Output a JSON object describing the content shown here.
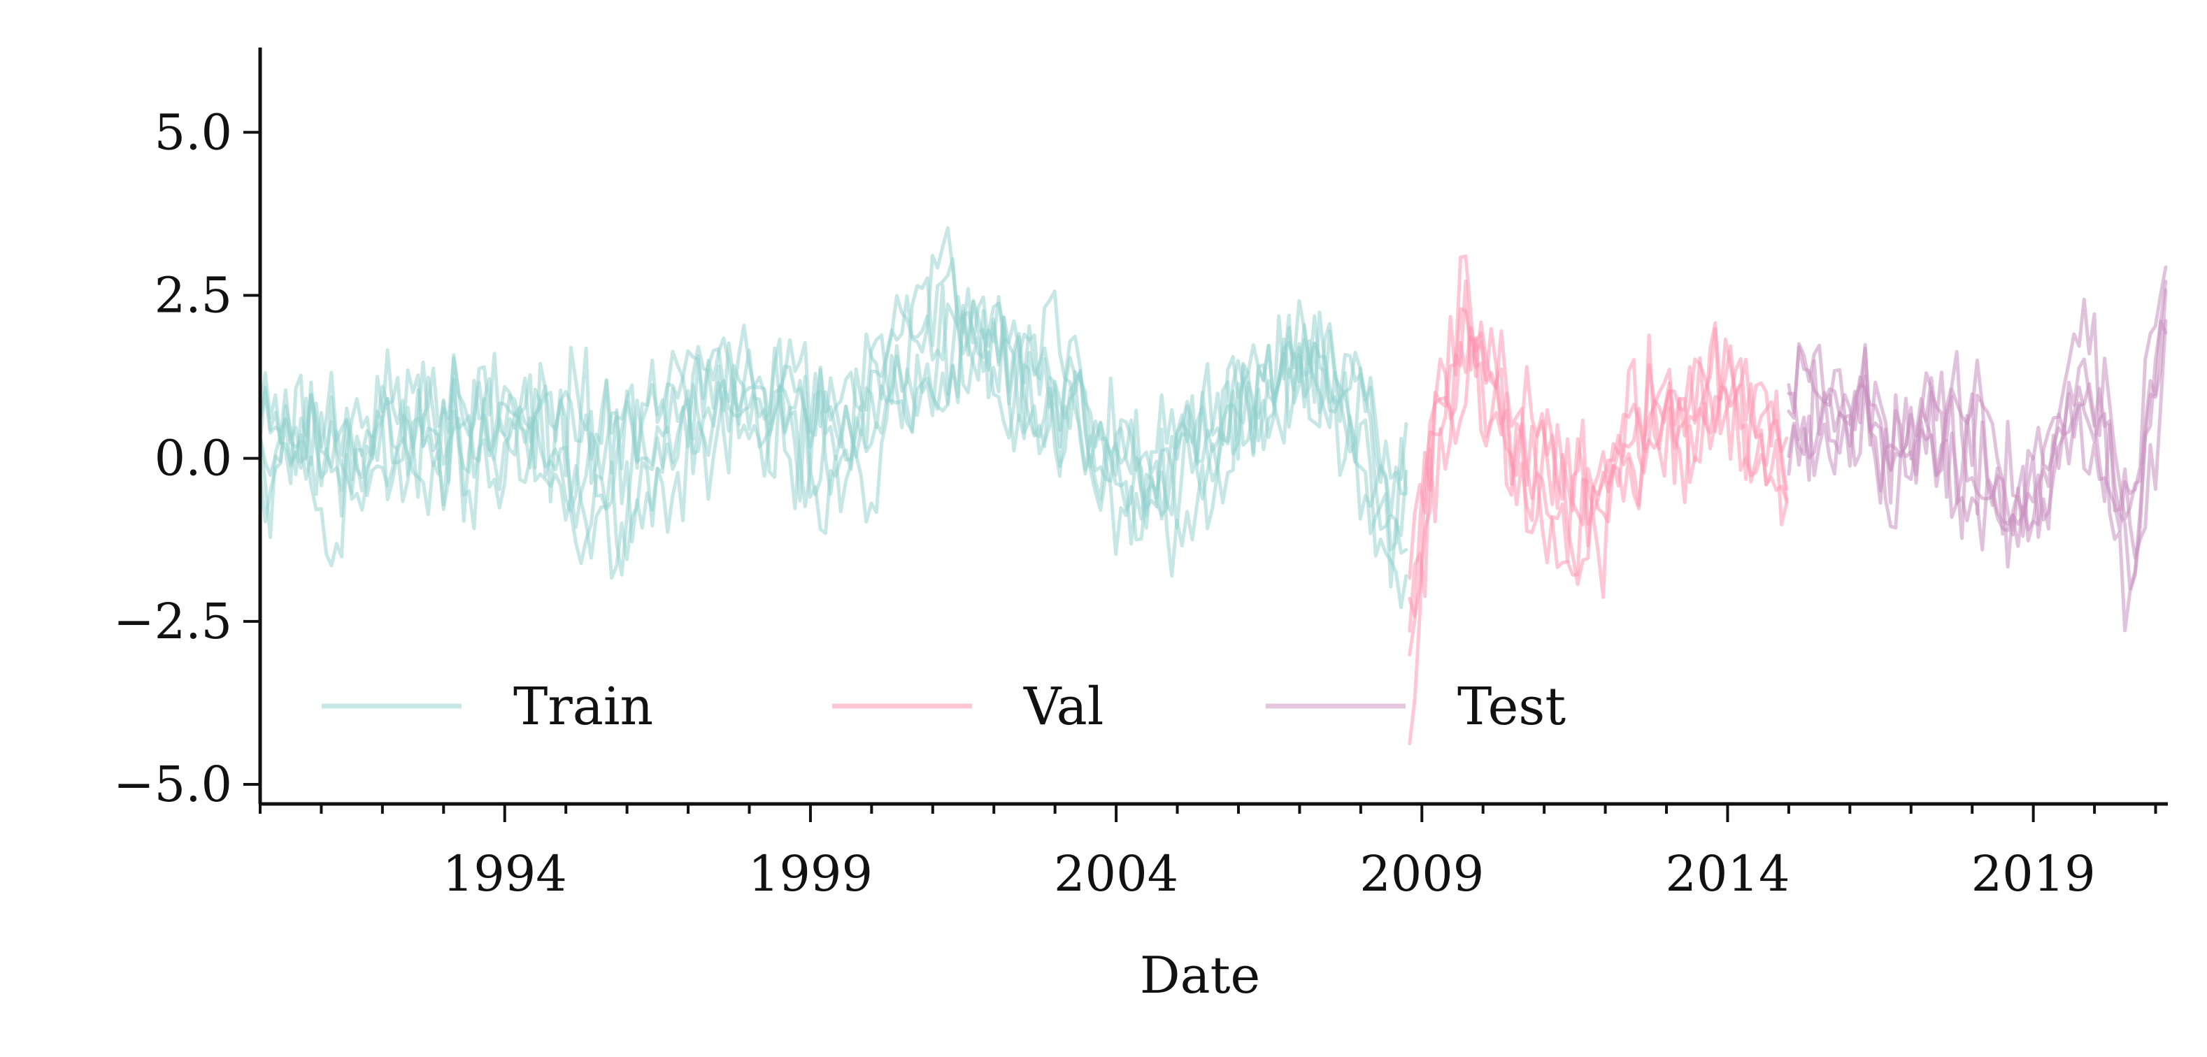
{
  "chart_data": {
    "type": "line",
    "title": "",
    "xlabel": "Date",
    "ylabel": "",
    "xlim": [
      1990.0,
      2021.2
    ],
    "ylim": [
      -5.3,
      6.3
    ],
    "x_ticks": [
      1994,
      1999,
      2004,
      2009,
      2014,
      2019
    ],
    "x_tick_labels": [
      "1994",
      "1999",
      "2004",
      "2009",
      "2014",
      "2019"
    ],
    "x_minor_tick_step": 1,
    "y_ticks": [
      5.0,
      2.5,
      0.0,
      -2.5,
      -5.0
    ],
    "y_tick_labels": [
      "5.0",
      "2.5",
      "0.0",
      "−2.5",
      "−5.0"
    ],
    "grid": false,
    "legend": {
      "placement": "lower-left",
      "columns": 3
    },
    "series": [
      {
        "name": "Train",
        "color": "#8ecfcc",
        "opacity": 0.5,
        "x_range": [
          1990.0,
          2008.8
        ],
        "step": 0.0833,
        "traces": [
          {
            "seed": 11,
            "anchors": [
              [
                1990.0,
                1.2
              ],
              [
                1991.0,
                0.1
              ],
              [
                1992.5,
                0.4
              ],
              [
                1994.0,
                0.6
              ],
              [
                1995.5,
                -0.6
              ],
              [
                1997.0,
                1.3
              ],
              [
                1998.5,
                0.2
              ],
              [
                2000.0,
                0.5
              ],
              [
                2001.0,
                2.6
              ],
              [
                2002.5,
                1.3
              ],
              [
                2004.0,
                -0.2
              ],
              [
                2005.5,
                0.1
              ],
              [
                2007.0,
                1.8
              ],
              [
                2008.0,
                -0.5
              ],
              [
                2008.8,
                -1.3
              ]
            ],
            "noise": 1.1,
            "min": -4.2,
            "max": 5.3
          },
          {
            "seed": 23,
            "anchors": [
              [
                1990.0,
                0.6
              ],
              [
                1991.5,
                0.8
              ],
              [
                1993.0,
                0.0
              ],
              [
                1994.5,
                1.0
              ],
              [
                1996.0,
                -0.4
              ],
              [
                1997.5,
                1.6
              ],
              [
                1999.0,
                -0.2
              ],
              [
                2000.5,
                1.0
              ],
              [
                2001.5,
                2.2
              ],
              [
                2003.0,
                0.9
              ],
              [
                2004.5,
                -0.6
              ],
              [
                2006.0,
                0.6
              ],
              [
                2007.5,
                1.5
              ],
              [
                2008.8,
                -1.1
              ]
            ],
            "noise": 1.2,
            "min": -4.2,
            "max": 5.3
          },
          {
            "seed": 37,
            "anchors": [
              [
                1990.0,
                0.2
              ],
              [
                1991.5,
                0.3
              ],
              [
                1993.5,
                0.5
              ],
              [
                1995.0,
                -0.2
              ],
              [
                1996.5,
                0.3
              ],
              [
                1998.0,
                1.0
              ],
              [
                1999.5,
                0.8
              ],
              [
                2001.0,
                1.9
              ],
              [
                2002.0,
                1.5
              ],
              [
                2003.5,
                0.6
              ],
              [
                2005.0,
                -0.3
              ],
              [
                2006.5,
                0.9
              ],
              [
                2007.8,
                0.8
              ],
              [
                2008.8,
                -1.6
              ]
            ],
            "noise": 1.0,
            "min": -4.2,
            "max": 5.3
          },
          {
            "seed": 41,
            "anchors": [
              [
                1990.0,
                -0.3
              ],
              [
                1992.0,
                0.2
              ],
              [
                1994.0,
                0.9
              ],
              [
                1995.5,
                -1.0
              ],
              [
                1997.0,
                0.9
              ],
              [
                1998.5,
                0.6
              ],
              [
                2000.0,
                0.2
              ],
              [
                2001.5,
                1.7
              ],
              [
                2003.0,
                1.6
              ],
              [
                2004.0,
                -1.0
              ],
              [
                2005.5,
                0.4
              ],
              [
                2007.0,
                1.2
              ],
              [
                2008.8,
                -0.8
              ]
            ],
            "noise": 1.1,
            "min": -4.2,
            "max": 5.3
          },
          {
            "seed": 53,
            "anchors": [
              [
                1990.0,
                1.8
              ],
              [
                1991.0,
                -0.4
              ],
              [
                1993.0,
                0.3
              ],
              [
                1995.0,
                0.4
              ],
              [
                1996.5,
                -0.8
              ],
              [
                1998.0,
                1.4
              ],
              [
                1999.5,
                0.0
              ],
              [
                2001.0,
                2.4
              ],
              [
                2002.5,
                1.0
              ],
              [
                2004.0,
                0.2
              ],
              [
                2005.5,
                -0.4
              ],
              [
                2007.0,
                2.1
              ],
              [
                2008.8,
                -1.9
              ]
            ],
            "noise": 1.2,
            "min": -4.2,
            "max": 5.3
          },
          {
            "seed": 67,
            "anchors": [
              [
                1990.0,
                0.5
              ],
              [
                1992.0,
                0.7
              ],
              [
                1993.5,
                -0.3
              ],
              [
                1995.0,
                0.8
              ],
              [
                1997.0,
                0.4
              ],
              [
                1998.5,
                1.1
              ],
              [
                2000.0,
                0.7
              ],
              [
                2001.5,
                2.0
              ],
              [
                2003.0,
                1.1
              ],
              [
                2004.5,
                -0.1
              ],
              [
                2006.0,
                0.3
              ],
              [
                2007.5,
                2.0
              ],
              [
                2008.8,
                -0.9
              ]
            ],
            "noise": 0.95,
            "min": -4.2,
            "max": 5.3
          }
        ]
      },
      {
        "name": "Val",
        "color": "#ff8fab",
        "opacity": 0.5,
        "x_range": [
          2008.8,
          2015.0
        ],
        "step": 0.0833,
        "traces": [
          {
            "seed": 101,
            "anchors": [
              [
                2008.8,
                -3.2
              ],
              [
                2009.2,
                1.2
              ],
              [
                2009.8,
                2.2
              ],
              [
                2010.5,
                0.3
              ],
              [
                2011.5,
                -0.7
              ],
              [
                2012.5,
                0.6
              ],
              [
                2013.5,
                0.9
              ],
              [
                2014.3,
                0.6
              ],
              [
                2015.0,
                -0.4
              ]
            ],
            "noise": 1.1,
            "min": -4.8,
            "max": 5.8
          },
          {
            "seed": 113,
            "anchors": [
              [
                2008.8,
                -2.1
              ],
              [
                2009.3,
                0.8
              ],
              [
                2009.9,
                1.6
              ],
              [
                2010.7,
                -0.2
              ],
              [
                2011.7,
                -0.9
              ],
              [
                2012.7,
                0.2
              ],
              [
                2013.6,
                1.1
              ],
              [
                2014.5,
                0.4
              ],
              [
                2015.0,
                0.2
              ]
            ],
            "noise": 1.2,
            "min": -4.8,
            "max": 5.8
          },
          {
            "seed": 127,
            "anchors": [
              [
                2008.8,
                -4.7
              ],
              [
                2009.1,
                0.2
              ],
              [
                2009.7,
                2.8
              ],
              [
                2010.4,
                0.8
              ],
              [
                2011.3,
                -1.2
              ],
              [
                2012.3,
                0.0
              ],
              [
                2013.3,
                0.6
              ],
              [
                2014.2,
                1.0
              ],
              [
                2015.0,
                -0.8
              ]
            ],
            "noise": 1.0,
            "min": -4.8,
            "max": 5.8
          },
          {
            "seed": 131,
            "anchors": [
              [
                2008.8,
                -1.3
              ],
              [
                2009.4,
                1.4
              ],
              [
                2010.0,
                1.0
              ],
              [
                2010.8,
                -0.5
              ],
              [
                2011.8,
                -0.3
              ],
              [
                2012.8,
                0.8
              ],
              [
                2013.8,
                0.4
              ],
              [
                2014.6,
                0.9
              ],
              [
                2015.0,
                0.0
              ]
            ],
            "noise": 1.1,
            "min": -4.8,
            "max": 5.8
          },
          {
            "seed": 149,
            "anchors": [
              [
                2008.8,
                -2.6
              ],
              [
                2009.2,
                0.5
              ],
              [
                2009.8,
                1.9
              ],
              [
                2010.6,
                0.0
              ],
              [
                2011.6,
                -0.8
              ],
              [
                2012.6,
                0.3
              ],
              [
                2013.4,
                1.3
              ],
              [
                2014.4,
                0.2
              ],
              [
                2015.0,
                -0.3
              ]
            ],
            "noise": 1.15,
            "min": -4.8,
            "max": 5.8
          }
        ]
      },
      {
        "name": "Test",
        "color": "#c98fbf",
        "opacity": 0.55,
        "x_range": [
          2015.0,
          2021.2
        ],
        "step": 0.0833,
        "traces": [
          {
            "seed": 211,
            "anchors": [
              [
                2015.0,
                1.6
              ],
              [
                2015.8,
                0.6
              ],
              [
                2016.6,
                0.2
              ],
              [
                2017.4,
                0.8
              ],
              [
                2018.2,
                -0.5
              ],
              [
                2019.0,
                -1.1
              ],
              [
                2019.8,
                0.9
              ],
              [
                2020.6,
                -1.6
              ],
              [
                2021.2,
                2.4
              ]
            ],
            "noise": 1.1,
            "min": -3.6,
            "max": 5.4
          },
          {
            "seed": 223,
            "anchors": [
              [
                2015.0,
                0.9
              ],
              [
                2015.9,
                1.0
              ],
              [
                2016.7,
                -0.3
              ],
              [
                2017.5,
                0.4
              ],
              [
                2018.3,
                -0.2
              ],
              [
                2019.1,
                -0.6
              ],
              [
                2019.9,
                1.4
              ],
              [
                2020.7,
                -1.0
              ],
              [
                2021.2,
                1.8
              ]
            ],
            "noise": 1.2,
            "min": -3.6,
            "max": 5.4
          },
          {
            "seed": 233,
            "anchors": [
              [
                2015.0,
                0.4
              ],
              [
                2015.7,
                0.3
              ],
              [
                2016.5,
                0.5
              ],
              [
                2017.3,
                0.1
              ],
              [
                2018.1,
                -0.8
              ],
              [
                2018.9,
                -0.9
              ],
              [
                2019.7,
                0.5
              ],
              [
                2020.5,
                -1.3
              ],
              [
                2021.2,
                3.0
              ]
            ],
            "noise": 1.0,
            "min": -3.6,
            "max": 5.4
          },
          {
            "seed": 241,
            "anchors": [
              [
                2015.0,
                1.2
              ],
              [
                2015.8,
                0.8
              ],
              [
                2016.6,
                0.0
              ],
              [
                2017.4,
                1.0
              ],
              [
                2018.2,
                0.0
              ],
              [
                2019.0,
                -1.4
              ],
              [
                2019.8,
                1.8
              ],
              [
                2020.6,
                -0.6
              ],
              [
                2021.2,
                2.0
              ]
            ],
            "noise": 1.15,
            "min": -3.6,
            "max": 5.4
          },
          {
            "seed": 251,
            "anchors": [
              [
                2015.0,
                0.2
              ],
              [
                2015.9,
                0.5
              ],
              [
                2016.7,
                0.7
              ],
              [
                2017.5,
                -0.2
              ],
              [
                2018.3,
                -0.4
              ],
              [
                2019.1,
                -0.8
              ],
              [
                2019.9,
                1.0
              ],
              [
                2020.7,
                -1.8
              ],
              [
                2021.2,
                2.6
              ]
            ],
            "noise": 1.1,
            "min": -3.6,
            "max": 5.4
          }
        ]
      }
    ]
  }
}
